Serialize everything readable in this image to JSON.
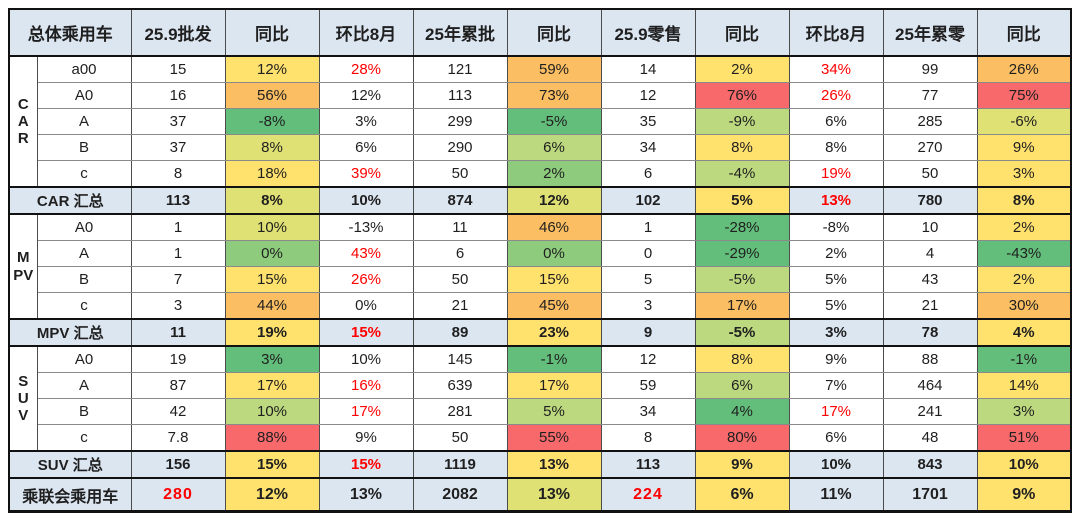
{
  "palette": {
    "W": "#ffffff",
    "B": "#dce6f1",
    "G": "#63be7b",
    "G2": "#8ecb7d",
    "YG": "#bcd97f",
    "YG2": "#e0e175",
    "Y": "#ffe26e",
    "O": "#fbbe62",
    "R": "#f8696b",
    "red_text": "#ff0000",
    "header_blue": "#dce6f1"
  },
  "chart_data": {
    "type": "table",
    "corner_header": "总体乘用车",
    "columns": [
      "25.9批发",
      "同比",
      "环比8月",
      "25年累批",
      "同比",
      "25.9零售",
      "同比",
      "环比8月",
      "25年累零",
      "同比"
    ],
    "groups": [
      {
        "name": "CAR",
        "rows": [
          {
            "model": "a00",
            "cells": [
              [
                "15",
                "W"
              ],
              [
                "12%",
                "Y"
              ],
              [
                "28%",
                "W",
                "r"
              ],
              [
                "121",
                "W"
              ],
              [
                "59%",
                "O"
              ],
              [
                "14",
                "W"
              ],
              [
                "2%",
                "Y"
              ],
              [
                "34%",
                "W",
                "r"
              ],
              [
                "99",
                "W"
              ],
              [
                "26%",
                "O"
              ]
            ]
          },
          {
            "model": "A0",
            "cells": [
              [
                "16",
                "W"
              ],
              [
                "56%",
                "O"
              ],
              [
                "12%",
                "W"
              ],
              [
                "113",
                "W"
              ],
              [
                "73%",
                "O"
              ],
              [
                "12",
                "W"
              ],
              [
                "76%",
                "R"
              ],
              [
                "26%",
                "W",
                "r"
              ],
              [
                "77",
                "W"
              ],
              [
                "75%",
                "R"
              ]
            ]
          },
          {
            "model": "A",
            "cells": [
              [
                "37",
                "W"
              ],
              [
                "-8%",
                "G"
              ],
              [
                "3%",
                "W"
              ],
              [
                "299",
                "W"
              ],
              [
                "-5%",
                "G"
              ],
              [
                "35",
                "W"
              ],
              [
                "-9%",
                "YG"
              ],
              [
                "6%",
                "W"
              ],
              [
                "285",
                "W"
              ],
              [
                "-6%",
                "YG2"
              ]
            ]
          },
          {
            "model": "B",
            "cells": [
              [
                "37",
                "W"
              ],
              [
                "8%",
                "YG2"
              ],
              [
                "6%",
                "W"
              ],
              [
                "290",
                "W"
              ],
              [
                "6%",
                "YG"
              ],
              [
                "34",
                "W"
              ],
              [
                "8%",
                "Y"
              ],
              [
                "8%",
                "W"
              ],
              [
                "270",
                "W"
              ],
              [
                "9%",
                "Y"
              ]
            ]
          },
          {
            "model": "c",
            "cells": [
              [
                "8",
                "W"
              ],
              [
                "18%",
                "Y"
              ],
              [
                "39%",
                "W",
                "r"
              ],
              [
                "50",
                "W"
              ],
              [
                "2%",
                "G2"
              ],
              [
                "6",
                "W"
              ],
              [
                "-4%",
                "YG"
              ],
              [
                "19%",
                "W",
                "r"
              ],
              [
                "50",
                "W"
              ],
              [
                "3%",
                "Y"
              ]
            ]
          }
        ],
        "summary": {
          "label": "CAR 汇总",
          "cells": [
            [
              "113",
              "B"
            ],
            [
              "8%",
              "YG2"
            ],
            [
              "10%",
              "B"
            ],
            [
              "874",
              "B"
            ],
            [
              "12%",
              "YG2"
            ],
            [
              "102",
              "B"
            ],
            [
              "5%",
              "Y"
            ],
            [
              "13%",
              "B",
              "r"
            ],
            [
              "780",
              "B"
            ],
            [
              "8%",
              "Y"
            ]
          ]
        }
      },
      {
        "name": "MPV",
        "rows": [
          {
            "model": "A0",
            "cells": [
              [
                "1",
                "W"
              ],
              [
                "10%",
                "YG2"
              ],
              [
                "-13%",
                "W"
              ],
              [
                "11",
                "W"
              ],
              [
                "46%",
                "O"
              ],
              [
                "1",
                "W"
              ],
              [
                "-28%",
                "G"
              ],
              [
                "-8%",
                "W"
              ],
              [
                "10",
                "W"
              ],
              [
                "2%",
                "Y"
              ]
            ]
          },
          {
            "model": "A",
            "cells": [
              [
                "1",
                "W"
              ],
              [
                "0%",
                "G2"
              ],
              [
                "43%",
                "W",
                "r"
              ],
              [
                "6",
                "W"
              ],
              [
                "0%",
                "G2"
              ],
              [
                "0",
                "W"
              ],
              [
                "-29%",
                "G"
              ],
              [
                "2%",
                "W"
              ],
              [
                "4",
                "W"
              ],
              [
                "-43%",
                "G"
              ]
            ]
          },
          {
            "model": "B",
            "cells": [
              [
                "7",
                "W"
              ],
              [
                "15%",
                "Y"
              ],
              [
                "26%",
                "W",
                "r"
              ],
              [
                "50",
                "W"
              ],
              [
                "15%",
                "Y"
              ],
              [
                "5",
                "W"
              ],
              [
                "-5%",
                "YG"
              ],
              [
                "5%",
                "W"
              ],
              [
                "43",
                "W"
              ],
              [
                "2%",
                "Y"
              ]
            ]
          },
          {
            "model": "c",
            "cells": [
              [
                "3",
                "W"
              ],
              [
                "44%",
                "O"
              ],
              [
                "0%",
                "W"
              ],
              [
                "21",
                "W"
              ],
              [
                "45%",
                "O"
              ],
              [
                "3",
                "W"
              ],
              [
                "17%",
                "O"
              ],
              [
                "5%",
                "W"
              ],
              [
                "21",
                "W"
              ],
              [
                "30%",
                "O"
              ]
            ]
          }
        ],
        "summary": {
          "label": "MPV 汇总",
          "cells": [
            [
              "11",
              "B"
            ],
            [
              "19%",
              "Y"
            ],
            [
              "15%",
              "B",
              "r"
            ],
            [
              "89",
              "B"
            ],
            [
              "23%",
              "Y"
            ],
            [
              "9",
              "B"
            ],
            [
              "-5%",
              "YG"
            ],
            [
              "3%",
              "B"
            ],
            [
              "78",
              "B"
            ],
            [
              "4%",
              "Y"
            ]
          ]
        }
      },
      {
        "name": "SUV",
        "rows": [
          {
            "model": "A0",
            "cells": [
              [
                "19",
                "W"
              ],
              [
                "3%",
                "G"
              ],
              [
                "10%",
                "W"
              ],
              [
                "145",
                "W"
              ],
              [
                "-1%",
                "G"
              ],
              [
                "12",
                "W"
              ],
              [
                "8%",
                "Y"
              ],
              [
                "9%",
                "W"
              ],
              [
                "88",
                "W"
              ],
              [
                "-1%",
                "G"
              ]
            ]
          },
          {
            "model": "A",
            "cells": [
              [
                "87",
                "W"
              ],
              [
                "17%",
                "Y"
              ],
              [
                "16%",
                "W",
                "r"
              ],
              [
                "639",
                "W"
              ],
              [
                "17%",
                "Y"
              ],
              [
                "59",
                "W"
              ],
              [
                "6%",
                "YG"
              ],
              [
                "7%",
                "W"
              ],
              [
                "464",
                "W"
              ],
              [
                "14%",
                "Y"
              ]
            ]
          },
          {
            "model": "B",
            "cells": [
              [
                "42",
                "W"
              ],
              [
                "10%",
                "YG"
              ],
              [
                "17%",
                "W",
                "r"
              ],
              [
                "281",
                "W"
              ],
              [
                "5%",
                "YG"
              ],
              [
                "34",
                "W"
              ],
              [
                "4%",
                "G"
              ],
              [
                "17%",
                "W",
                "r"
              ],
              [
                "241",
                "W"
              ],
              [
                "3%",
                "YG"
              ]
            ]
          },
          {
            "model": "c",
            "cells": [
              [
                "7.8",
                "W"
              ],
              [
                "88%",
                "R"
              ],
              [
                "9%",
                "W"
              ],
              [
                "50",
                "W"
              ],
              [
                "55%",
                "R"
              ],
              [
                "8",
                "W"
              ],
              [
                "80%",
                "R"
              ],
              [
                "6%",
                "W"
              ],
              [
                "48",
                "W"
              ],
              [
                "51%",
                "R"
              ]
            ]
          }
        ],
        "summary": {
          "label": "SUV 汇总",
          "cells": [
            [
              "156",
              "B"
            ],
            [
              "15%",
              "Y"
            ],
            [
              "15%",
              "B",
              "r"
            ],
            [
              "1119",
              "B"
            ],
            [
              "13%",
              "Y"
            ],
            [
              "113",
              "B"
            ],
            [
              "9%",
              "Y"
            ],
            [
              "10%",
              "B"
            ],
            [
              "843",
              "B"
            ],
            [
              "10%",
              "Y"
            ]
          ]
        }
      }
    ],
    "total": {
      "label": "乘联会乘用车",
      "cells": [
        [
          "280",
          "B",
          "rb"
        ],
        [
          "12%",
          "Y"
        ],
        [
          "13%",
          "B"
        ],
        [
          "2082",
          "B"
        ],
        [
          "13%",
          "YG2"
        ],
        [
          "224",
          "B",
          "rb"
        ],
        [
          "6%",
          "Y"
        ],
        [
          "11%",
          "B"
        ],
        [
          "1701",
          "B"
        ],
        [
          "9%",
          "Y"
        ]
      ]
    }
  }
}
